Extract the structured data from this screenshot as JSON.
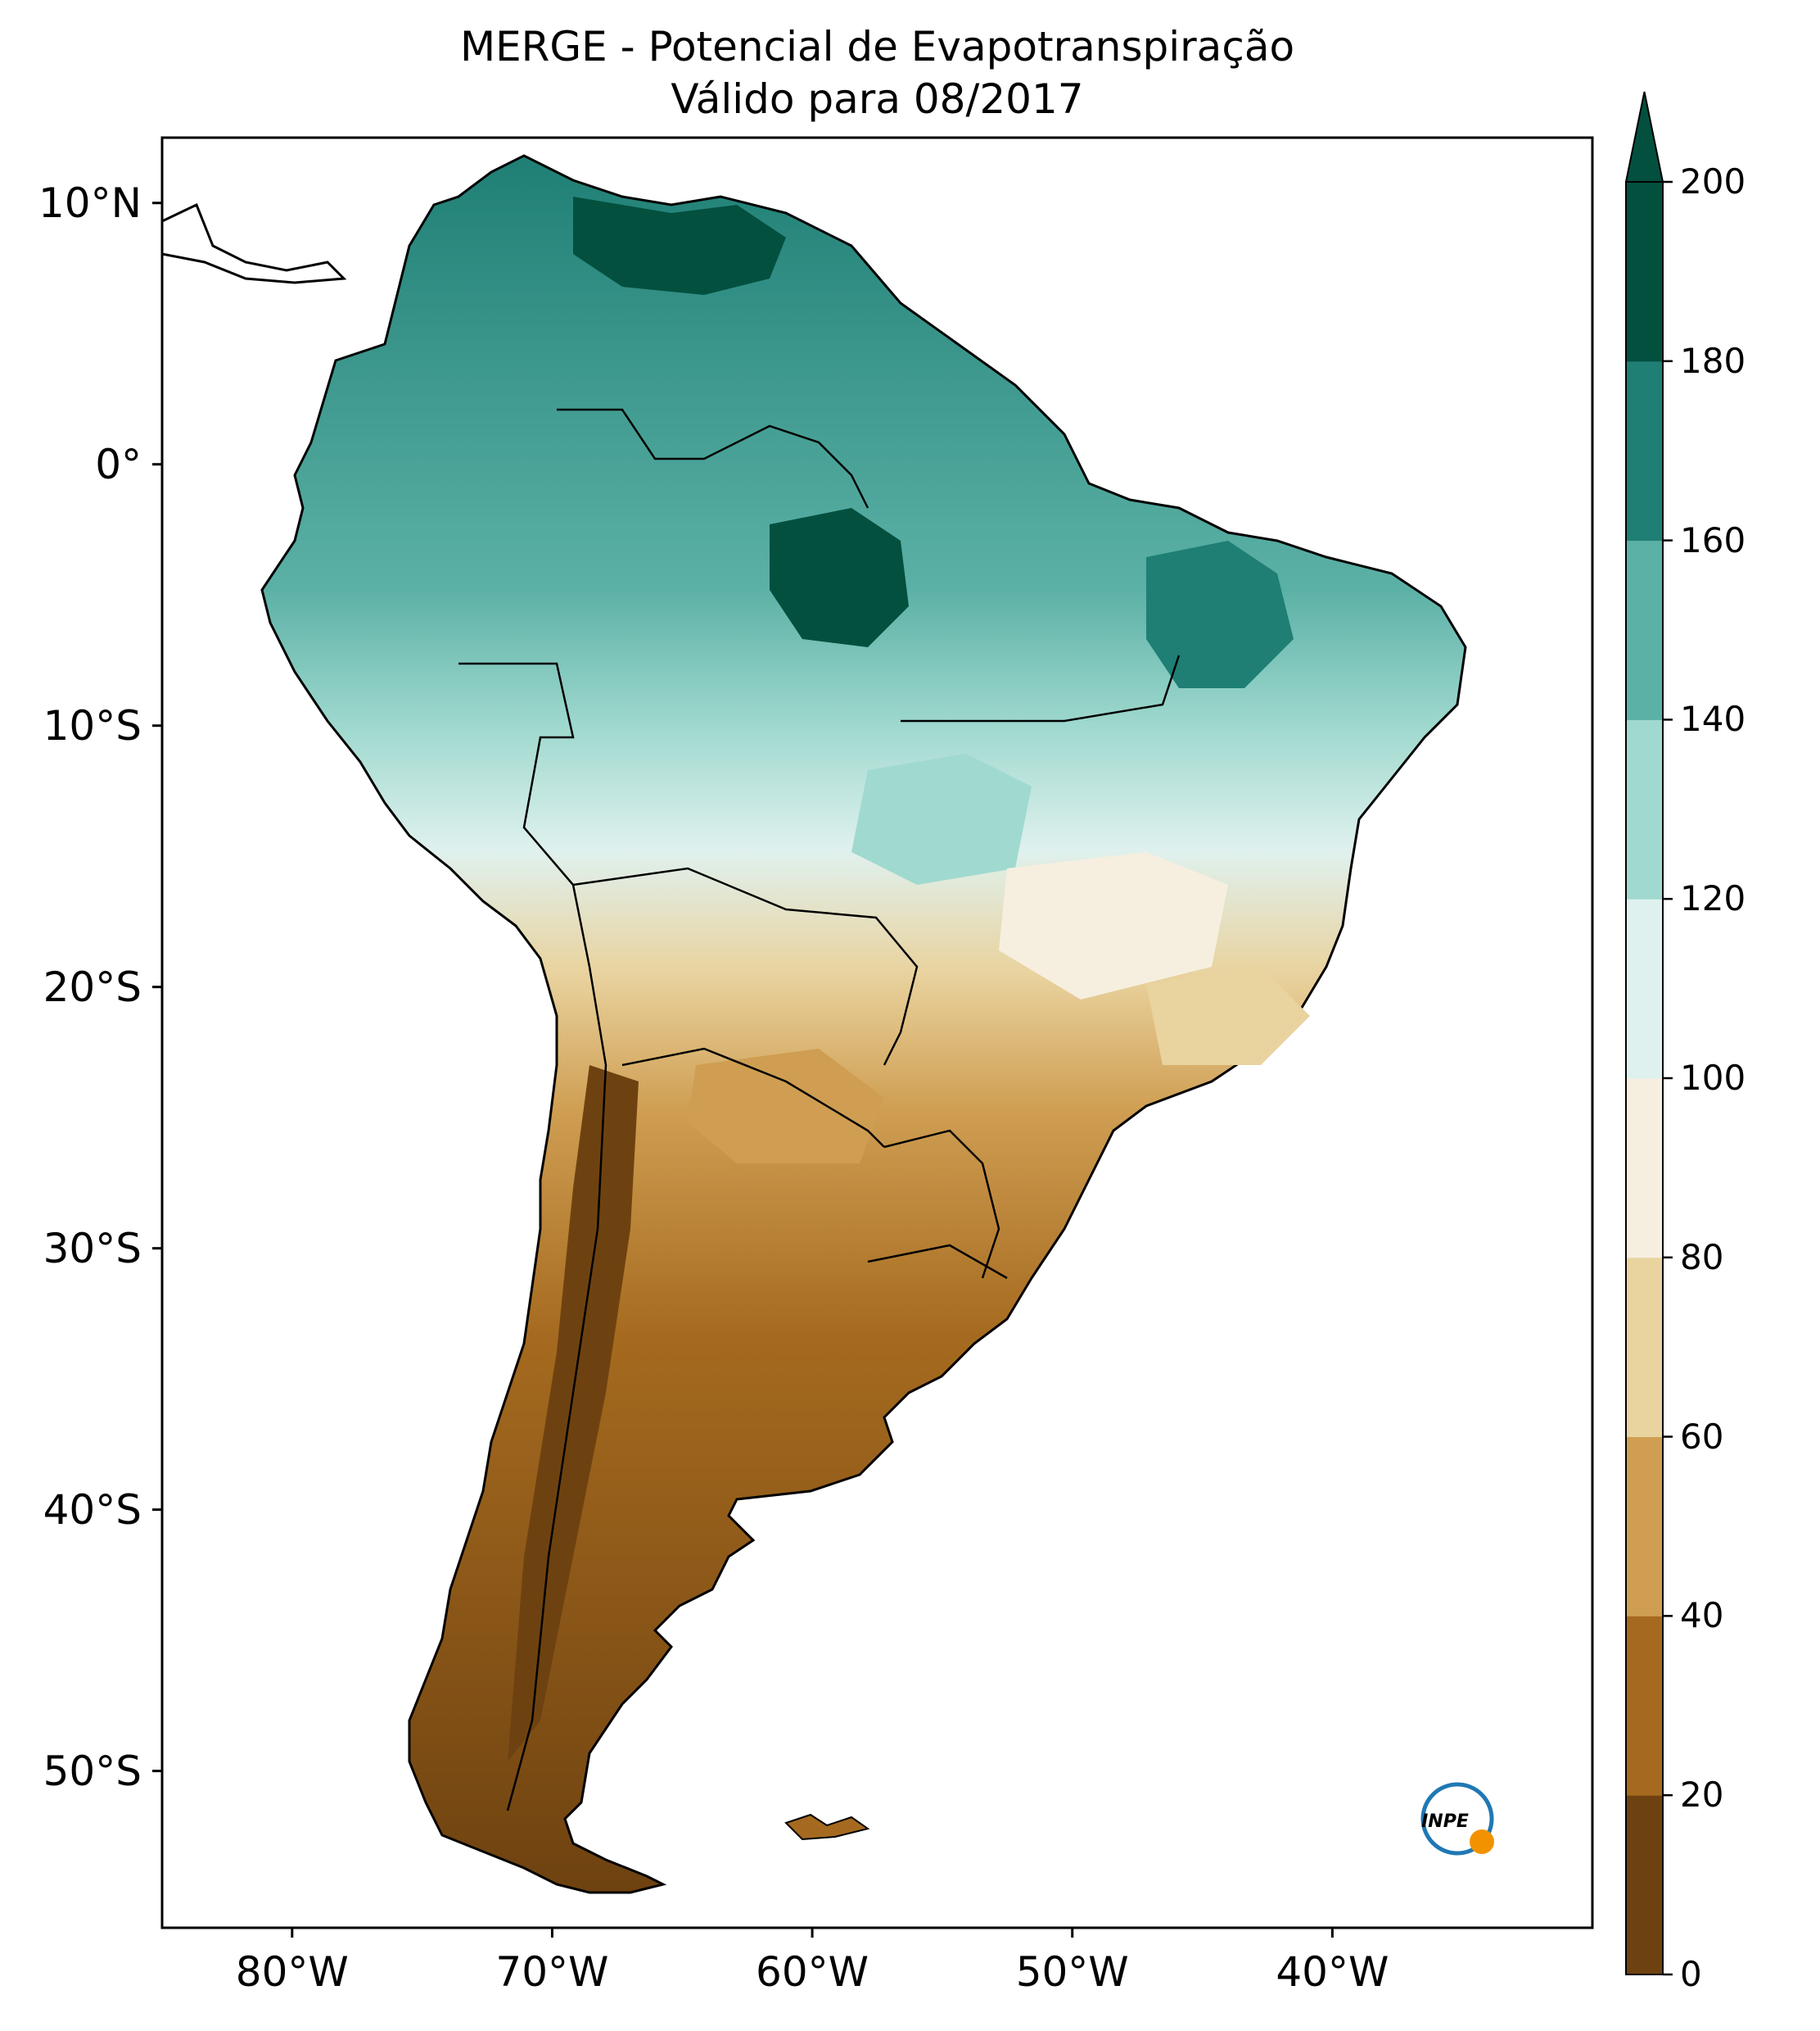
{
  "title": {
    "line1": "MERGE - Potencial de Evapotranspiração",
    "line2": "Válido para 08/2017"
  },
  "map": {
    "region": "South America",
    "lon_range": [
      -85,
      -30
    ],
    "lat_range": [
      -56,
      12.5
    ],
    "lat_ticks": [
      {
        "lat": 10,
        "label": "10°N"
      },
      {
        "lat": 0,
        "label": "0°"
      },
      {
        "lat": -10,
        "label": "10°S"
      },
      {
        "lat": -20,
        "label": "20°S"
      },
      {
        "lat": -30,
        "label": "30°S"
      },
      {
        "lat": -40,
        "label": "40°S"
      },
      {
        "lat": -50,
        "label": "50°S"
      }
    ],
    "lon_ticks": [
      {
        "lon": -80,
        "label": "80°W"
      },
      {
        "lon": -70,
        "label": "70°W"
      },
      {
        "lon": -60,
        "label": "60°W"
      },
      {
        "lon": -50,
        "label": "50°W"
      },
      {
        "lon": -40,
        "label": "40°W"
      }
    ]
  },
  "colorbar": {
    "levels": [
      0,
      20,
      40,
      60,
      80,
      100,
      120,
      140,
      160,
      180,
      200
    ],
    "labels": [
      "0",
      "20",
      "40",
      "60",
      "80",
      "100",
      "120",
      "140",
      "160",
      "180",
      "200"
    ],
    "colors": [
      "#6e4210",
      "#a56a1f",
      "#cf9e52",
      "#e9d39f",
      "#f6efdf",
      "#dff1ee",
      "#a0d9cf",
      "#5cb1a6",
      "#1f7f75",
      "#03503f"
    ],
    "extend": "max"
  },
  "logo": {
    "text": "INPE",
    "colors": {
      "ring": "#1f78b4",
      "dot": "#f39200"
    }
  }
}
